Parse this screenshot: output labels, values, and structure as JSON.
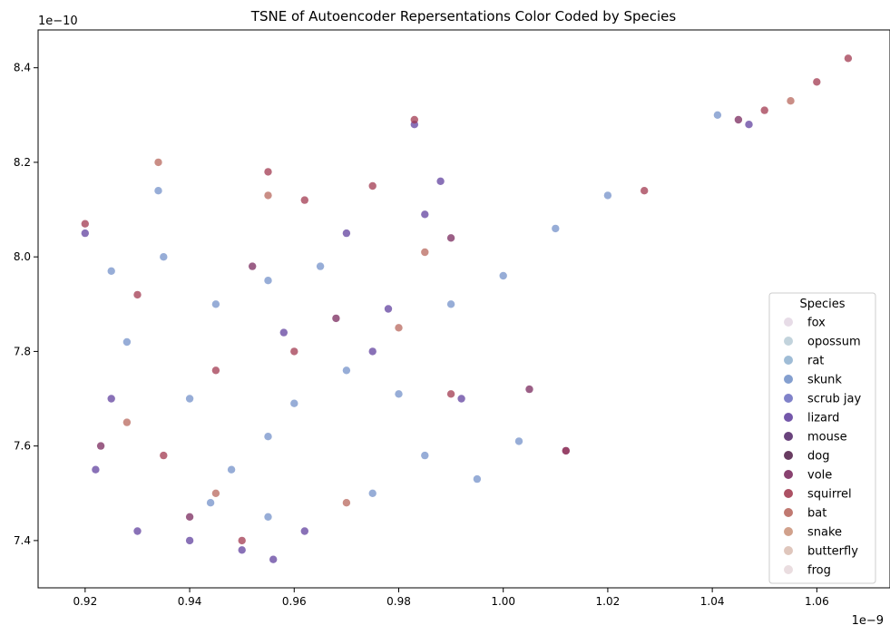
{
  "chart_data": {
    "type": "scatter",
    "title": "TSNE of Autoencoder Repersentations Color Coded by Species",
    "xlabel": "",
    "ylabel": "",
    "x_offset_label": "1e−9",
    "y_offset_label": "1e−10",
    "xlim": [
      0.911,
      1.074
    ],
    "ylim": [
      7.3,
      8.48
    ],
    "x_ticks": [
      0.92,
      0.94,
      0.96,
      0.98,
      1.0,
      1.02,
      1.04,
      1.06
    ],
    "x_tick_labels": [
      "0.92",
      "0.94",
      "0.96",
      "0.98",
      "1.00",
      "1.02",
      "1.04",
      "1.06"
    ],
    "y_ticks": [
      7.4,
      7.6,
      7.8,
      8.0,
      8.2,
      8.4
    ],
    "y_tick_labels": [
      "7.4",
      "7.6",
      "7.8",
      "8.0",
      "8.2",
      "8.4"
    ],
    "grid": false,
    "legend": {
      "title": "Species",
      "position": "lower-right",
      "entries": [
        {
          "name": "fox",
          "color": "#e3d6e3"
        },
        {
          "name": "opossum",
          "color": "#b7cbd6"
        },
        {
          "name": "rat",
          "color": "#8eb0cf"
        },
        {
          "name": "skunk",
          "color": "#6f8ec7"
        },
        {
          "name": "scrub jay",
          "color": "#6a6cbf"
        },
        {
          "name": "lizard",
          "color": "#5c3a9b"
        },
        {
          "name": "mouse",
          "color": "#4f2265"
        },
        {
          "name": "dog",
          "color": "#4d1a45"
        },
        {
          "name": "vole",
          "color": "#742157"
        },
        {
          "name": "squirrel",
          "color": "#9e3249"
        },
        {
          "name": "bat",
          "color": "#b56258"
        },
        {
          "name": "snake",
          "color": "#c99078"
        },
        {
          "name": "butterfly",
          "color": "#d9bcb0"
        },
        {
          "name": "frog",
          "color": "#e6d7da"
        }
      ]
    },
    "series": [
      {
        "name": "skunk",
        "color": "#6f8ec7",
        "points": [
          [
            0.925,
            7.97
          ],
          [
            0.935,
            8.0
          ],
          [
            0.945,
            7.9
          ],
          [
            0.955,
            7.62
          ],
          [
            0.955,
            7.95
          ],
          [
            0.94,
            7.7
          ],
          [
            0.96,
            7.69
          ],
          [
            0.97,
            7.76
          ],
          [
            0.98,
            7.71
          ],
          [
            0.99,
            7.9
          ],
          [
            1.0,
            7.96
          ],
          [
            1.01,
            8.06
          ],
          [
            1.02,
            8.13
          ],
          [
            1.041,
            8.3
          ],
          [
            0.934,
            8.14
          ],
          [
            0.944,
            7.48
          ],
          [
            0.955,
            7.45
          ],
          [
            0.985,
            7.58
          ],
          [
            0.995,
            7.53
          ],
          [
            1.003,
            7.61
          ],
          [
            0.975,
            7.5
          ],
          [
            0.965,
            7.98
          ],
          [
            0.928,
            7.82
          ],
          [
            0.948,
            7.55
          ]
        ]
      },
      {
        "name": "lizard",
        "color": "#5c3a9b",
        "points": [
          [
            0.92,
            8.05
          ],
          [
            0.93,
            7.42
          ],
          [
            0.94,
            7.4
          ],
          [
            0.95,
            7.38
          ],
          [
            0.956,
            7.36
          ],
          [
            0.925,
            7.7
          ],
          [
            0.985,
            8.09
          ],
          [
            0.988,
            8.16
          ],
          [
            0.983,
            8.28
          ],
          [
            0.97,
            8.05
          ],
          [
            0.975,
            7.8
          ],
          [
            0.992,
            7.7
          ],
          [
            1.012,
            7.59
          ],
          [
            1.047,
            8.28
          ],
          [
            0.962,
            7.42
          ],
          [
            0.922,
            7.55
          ],
          [
            0.958,
            7.84
          ],
          [
            0.978,
            7.89
          ]
        ]
      },
      {
        "name": "squirrel",
        "color": "#9e3249",
        "points": [
          [
            0.93,
            7.92
          ],
          [
            0.945,
            7.76
          ],
          [
            0.955,
            8.18
          ],
          [
            0.962,
            8.12
          ],
          [
            0.975,
            8.15
          ],
          [
            0.983,
            8.29
          ],
          [
            0.96,
            7.8
          ],
          [
            0.935,
            7.58
          ],
          [
            1.027,
            8.14
          ],
          [
            1.012,
            7.59
          ],
          [
            1.05,
            8.31
          ],
          [
            1.06,
            8.37
          ],
          [
            1.066,
            8.42
          ],
          [
            0.99,
            7.71
          ],
          [
            0.92,
            8.07
          ],
          [
            0.95,
            7.4
          ]
        ]
      },
      {
        "name": "bat",
        "color": "#b56258",
        "points": [
          [
            0.934,
            8.2
          ],
          [
            0.955,
            8.13
          ],
          [
            0.97,
            7.48
          ],
          [
            0.985,
            8.01
          ],
          [
            1.055,
            8.33
          ],
          [
            0.945,
            7.5
          ],
          [
            0.928,
            7.65
          ],
          [
            0.98,
            7.85
          ]
        ]
      },
      {
        "name": "vole",
        "color": "#742157",
        "points": [
          [
            0.923,
            7.6
          ],
          [
            0.952,
            7.98
          ],
          [
            0.968,
            7.87
          ],
          [
            0.99,
            8.04
          ],
          [
            1.045,
            8.29
          ],
          [
            0.94,
            7.45
          ],
          [
            1.005,
            7.72
          ]
        ]
      }
    ]
  }
}
